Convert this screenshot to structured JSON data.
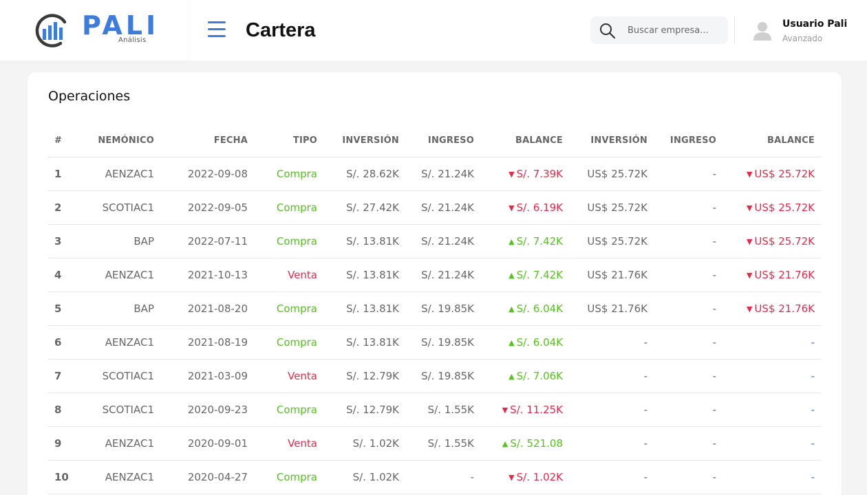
{
  "brand": {
    "name": "PALI",
    "subtitle": "Análisis"
  },
  "header": {
    "title": "Cartera",
    "search_placeholder": "Buscar empresa...",
    "user": {
      "name": "Usuario Pali",
      "role": "Avanzado"
    }
  },
  "colors": {
    "accent": "#3d7bdc",
    "up": "#52c41a",
    "down": "#e8284a",
    "neutral": "#4a6fa5"
  },
  "operations": {
    "title": "Operaciones",
    "columns": [
      "#",
      "NEMÓNICO",
      "FECHA",
      "TIPO",
      "INVERSIÓN",
      "INGRESO",
      "BALANCE",
      "INVERSIÓN",
      "INGRESO",
      "BALANCE"
    ],
    "rows": [
      {
        "num": "1",
        "nemonico": "AENZAC1",
        "fecha": "2022-09-08",
        "tipo": "Compra",
        "tipo_kind": "compra",
        "inv_pen": "S/. 28.62K",
        "ing_pen": "S/. 21.24K",
        "bal_pen": "S/. 7.39K",
        "bal_pen_dir": "down",
        "inv_usd": "US$ 25.72K",
        "ing_usd": "-",
        "bal_usd": "US$ 25.72K",
        "bal_usd_dir": "down"
      },
      {
        "num": "2",
        "nemonico": "SCOTIAC1",
        "fecha": "2022-09-05",
        "tipo": "Compra",
        "tipo_kind": "compra",
        "inv_pen": "S/. 27.42K",
        "ing_pen": "S/. 21.24K",
        "bal_pen": "S/. 6.19K",
        "bal_pen_dir": "down",
        "inv_usd": "US$ 25.72K",
        "ing_usd": "-",
        "bal_usd": "US$ 25.72K",
        "bal_usd_dir": "down"
      },
      {
        "num": "3",
        "nemonico": "BAP",
        "fecha": "2022-07-11",
        "tipo": "Compra",
        "tipo_kind": "compra",
        "inv_pen": "S/. 13.81K",
        "ing_pen": "S/. 21.24K",
        "bal_pen": "S/. 7.42K",
        "bal_pen_dir": "up",
        "inv_usd": "US$ 25.72K",
        "ing_usd": "-",
        "bal_usd": "US$ 25.72K",
        "bal_usd_dir": "down"
      },
      {
        "num": "4",
        "nemonico": "AENZAC1",
        "fecha": "2021-10-13",
        "tipo": "Venta",
        "tipo_kind": "venta",
        "inv_pen": "S/. 13.81K",
        "ing_pen": "S/. 21.24K",
        "bal_pen": "S/. 7.42K",
        "bal_pen_dir": "up",
        "inv_usd": "US$ 21.76K",
        "ing_usd": "-",
        "bal_usd": "US$ 21.76K",
        "bal_usd_dir": "down"
      },
      {
        "num": "5",
        "nemonico": "BAP",
        "fecha": "2021-08-20",
        "tipo": "Compra",
        "tipo_kind": "compra",
        "inv_pen": "S/. 13.81K",
        "ing_pen": "S/. 19.85K",
        "bal_pen": "S/. 6.04K",
        "bal_pen_dir": "up",
        "inv_usd": "US$ 21.76K",
        "ing_usd": "-",
        "bal_usd": "US$ 21.76K",
        "bal_usd_dir": "down"
      },
      {
        "num": "6",
        "nemonico": "AENZAC1",
        "fecha": "2021-08-19",
        "tipo": "Compra",
        "tipo_kind": "compra",
        "inv_pen": "S/. 13.81K",
        "ing_pen": "S/. 19.85K",
        "bal_pen": "S/. 6.04K",
        "bal_pen_dir": "up",
        "inv_usd": "-",
        "ing_usd": "-",
        "bal_usd": "-",
        "bal_usd_dir": "none"
      },
      {
        "num": "7",
        "nemonico": "SCOTIAC1",
        "fecha": "2021-03-09",
        "tipo": "Venta",
        "tipo_kind": "venta",
        "inv_pen": "S/. 12.79K",
        "ing_pen": "S/. 19.85K",
        "bal_pen": "S/. 7.06K",
        "bal_pen_dir": "up",
        "inv_usd": "-",
        "ing_usd": "-",
        "bal_usd": "-",
        "bal_usd_dir": "none"
      },
      {
        "num": "8",
        "nemonico": "SCOTIAC1",
        "fecha": "2020-09-23",
        "tipo": "Compra",
        "tipo_kind": "compra",
        "inv_pen": "S/. 12.79K",
        "ing_pen": "S/. 1.55K",
        "bal_pen": "S/. 11.25K",
        "bal_pen_dir": "down",
        "inv_usd": "-",
        "ing_usd": "-",
        "bal_usd": "-",
        "bal_usd_dir": "none"
      },
      {
        "num": "9",
        "nemonico": "AENZAC1",
        "fecha": "2020-09-01",
        "tipo": "Venta",
        "tipo_kind": "venta",
        "inv_pen": "S/. 1.02K",
        "ing_pen": "S/. 1.55K",
        "bal_pen": "S/. 521.08",
        "bal_pen_dir": "up",
        "inv_usd": "-",
        "ing_usd": "-",
        "bal_usd": "-",
        "bal_usd_dir": "none"
      },
      {
        "num": "10",
        "nemonico": "AENZAC1",
        "fecha": "2020-04-27",
        "tipo": "Compra",
        "tipo_kind": "compra",
        "inv_pen": "S/. 1.02K",
        "ing_pen": "-",
        "bal_pen": "S/. 1.02K",
        "bal_pen_dir": "down",
        "inv_usd": "-",
        "ing_usd": "-",
        "bal_usd": "-",
        "bal_usd_dir": "none"
      }
    ]
  }
}
